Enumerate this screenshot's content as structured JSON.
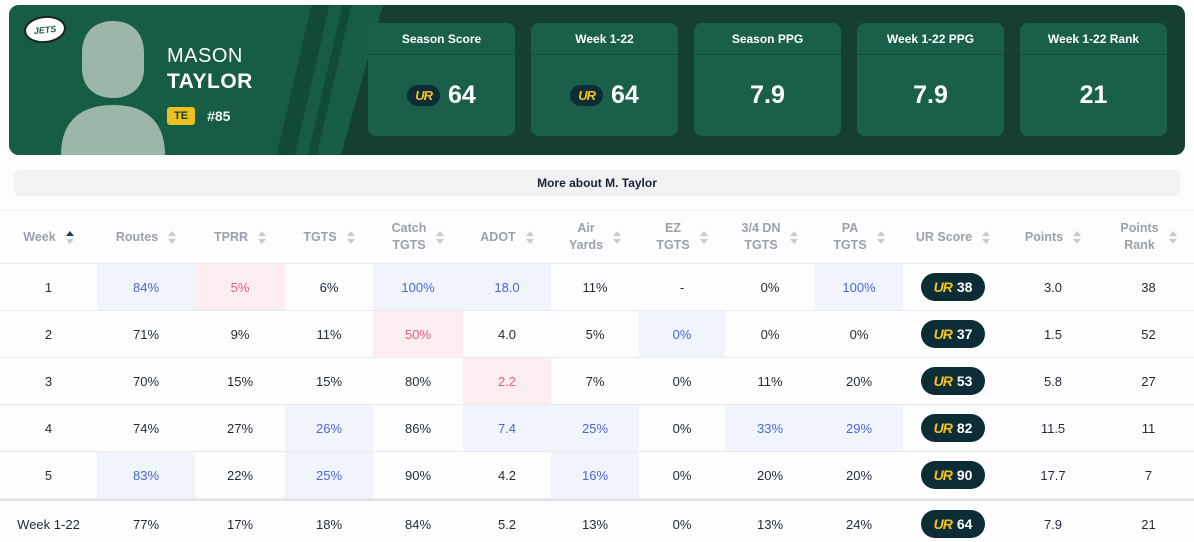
{
  "colors": {
    "hero_dark": "#15402F",
    "hero_green": "#175C45",
    "hero_stripe": "#114A36",
    "card_green": "#1A5F49",
    "badge_yellow": "#EDC01F",
    "ur_navy": "#0D2D36",
    "ur_yellow": "#F2C21D",
    "hl_blue_bg": "#F0F5FB",
    "hl_blue_text": "#4C66D4",
    "hl_red_bg": "#FCEDF0",
    "hl_red_text": "#E8607A"
  },
  "player": {
    "team": "JETS",
    "first_name": "MASON",
    "last_name": "TAYLOR",
    "position": "TE",
    "jersey_number": "#85"
  },
  "ur_logo_text": "UR",
  "stat_cards": [
    {
      "label": "Season Score",
      "value": "64",
      "logo": true
    },
    {
      "label": "Week 1-22",
      "value": "64",
      "logo": true
    },
    {
      "label": "Season PPG",
      "value": "7.9",
      "logo": false
    },
    {
      "label": "Week 1-22 PPG",
      "value": "7.9",
      "logo": false
    },
    {
      "label": "Week 1-22 Rank",
      "value": "21",
      "logo": false
    }
  ],
  "more_button_label": "More about M. Taylor",
  "table": {
    "columns": [
      {
        "label": "Week",
        "sort": "asc"
      },
      {
        "label": "Routes"
      },
      {
        "label": "TPRR"
      },
      {
        "label": "TGTS"
      },
      {
        "label": "Catch\nTGTS"
      },
      {
        "label": "ADOT"
      },
      {
        "label": "Air\nYards"
      },
      {
        "label": "EZ\nTGTS"
      },
      {
        "label": "3/4 DN\nTGTS"
      },
      {
        "label": "PA\nTGTS"
      },
      {
        "label": "UR Score"
      },
      {
        "label": "Points"
      },
      {
        "label": "Points\nRank"
      }
    ],
    "rows": [
      {
        "summary": false,
        "cells": [
          {
            "t": "1"
          },
          {
            "t": "84%",
            "h": "b"
          },
          {
            "t": "5%",
            "h": "r"
          },
          {
            "t": "6%"
          },
          {
            "t": "100%",
            "h": "b"
          },
          {
            "t": "18.0",
            "h": "b"
          },
          {
            "t": "11%"
          },
          {
            "t": "-"
          },
          {
            "t": "0%"
          },
          {
            "t": "100%",
            "h": "b"
          },
          {
            "t": "38",
            "ur": true
          },
          {
            "t": "3.0"
          },
          {
            "t": "38"
          }
        ]
      },
      {
        "summary": false,
        "cells": [
          {
            "t": "2"
          },
          {
            "t": "71%"
          },
          {
            "t": "9%"
          },
          {
            "t": "11%"
          },
          {
            "t": "50%",
            "h": "r"
          },
          {
            "t": "4.0"
          },
          {
            "t": "5%"
          },
          {
            "t": "0%",
            "h": "b"
          },
          {
            "t": "0%"
          },
          {
            "t": "0%"
          },
          {
            "t": "37",
            "ur": true
          },
          {
            "t": "1.5"
          },
          {
            "t": "52"
          }
        ]
      },
      {
        "summary": false,
        "cells": [
          {
            "t": "3"
          },
          {
            "t": "70%"
          },
          {
            "t": "15%"
          },
          {
            "t": "15%"
          },
          {
            "t": "80%"
          },
          {
            "t": "2.2",
            "h": "r"
          },
          {
            "t": "7%"
          },
          {
            "t": "0%"
          },
          {
            "t": "11%"
          },
          {
            "t": "20%"
          },
          {
            "t": "53",
            "ur": true
          },
          {
            "t": "5.8"
          },
          {
            "t": "27"
          }
        ]
      },
      {
        "summary": false,
        "cells": [
          {
            "t": "4"
          },
          {
            "t": "74%"
          },
          {
            "t": "27%"
          },
          {
            "t": "26%",
            "h": "b"
          },
          {
            "t": "86%"
          },
          {
            "t": "7.4",
            "h": "b"
          },
          {
            "t": "25%",
            "h": "b"
          },
          {
            "t": "0%"
          },
          {
            "t": "33%",
            "h": "b"
          },
          {
            "t": "29%",
            "h": "b"
          },
          {
            "t": "82",
            "ur": true
          },
          {
            "t": "11.5"
          },
          {
            "t": "11"
          }
        ]
      },
      {
        "summary": false,
        "cells": [
          {
            "t": "5"
          },
          {
            "t": "83%",
            "h": "b"
          },
          {
            "t": "22%"
          },
          {
            "t": "25%",
            "h": "b"
          },
          {
            "t": "90%"
          },
          {
            "t": "4.2"
          },
          {
            "t": "16%",
            "h": "b"
          },
          {
            "t": "0%"
          },
          {
            "t": "20%"
          },
          {
            "t": "20%"
          },
          {
            "t": "90",
            "ur": true
          },
          {
            "t": "17.7"
          },
          {
            "t": "7"
          }
        ]
      },
      {
        "summary": true,
        "cells": [
          {
            "t": "Week 1-22"
          },
          {
            "t": "77%"
          },
          {
            "t": "17%"
          },
          {
            "t": "18%"
          },
          {
            "t": "84%"
          },
          {
            "t": "5.2"
          },
          {
            "t": "13%"
          },
          {
            "t": "0%"
          },
          {
            "t": "13%"
          },
          {
            "t": "24%"
          },
          {
            "t": "64",
            "ur": true
          },
          {
            "t": "7.9"
          },
          {
            "t": "21"
          }
        ]
      }
    ]
  }
}
